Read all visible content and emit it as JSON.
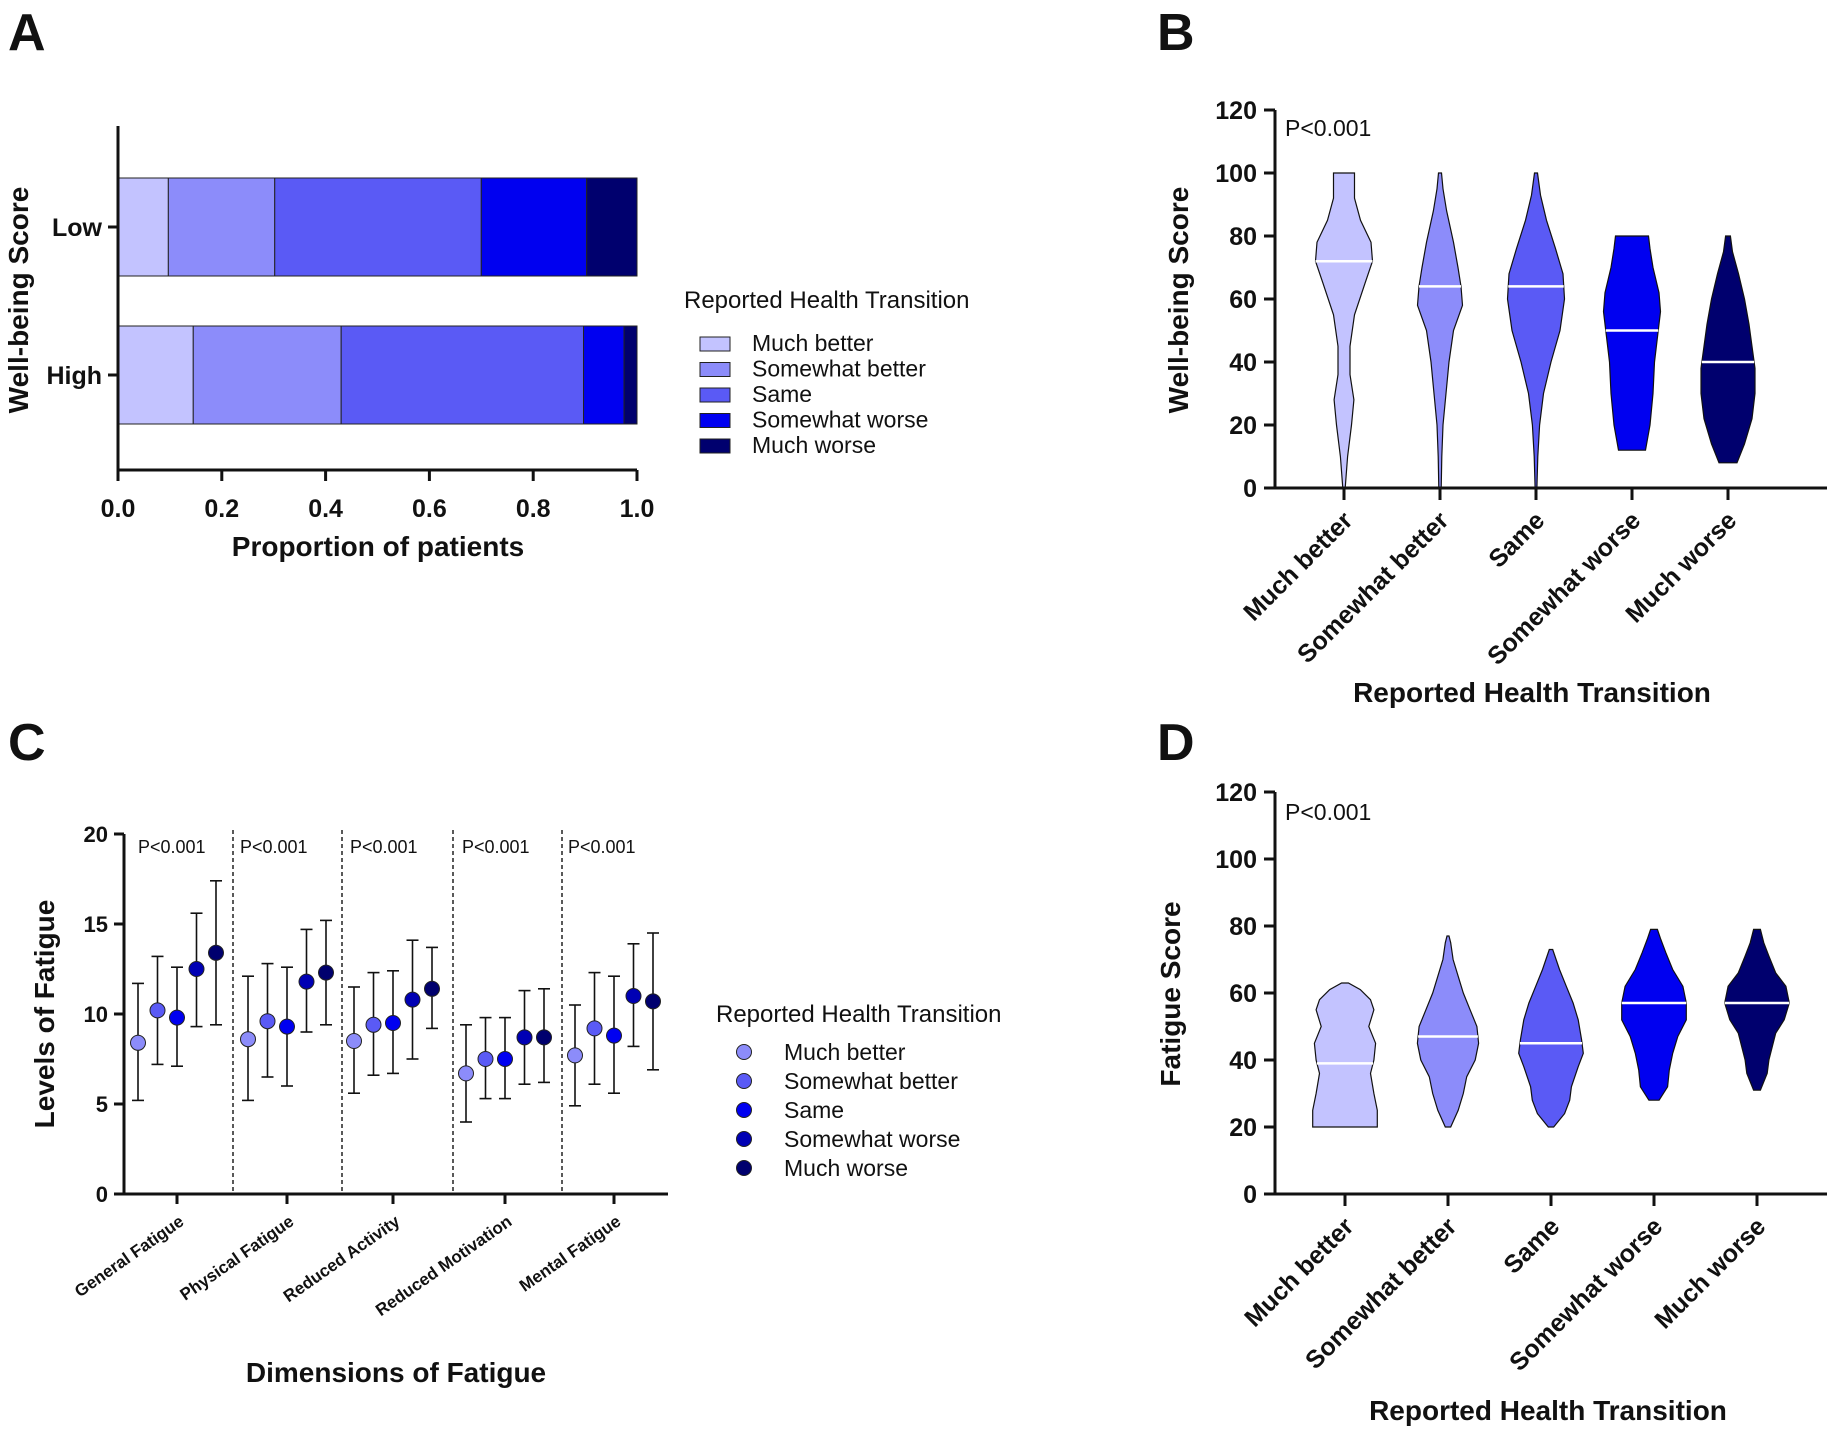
{
  "colors": {
    "much_better": "#c3c3ff",
    "somewhat_better": "#8c8cfa",
    "same": "#5a5af5",
    "somewhat_worse": "#0000f0",
    "much_worse": "#00006e",
    "dot_much_better": "#8c8cfa",
    "dot_somewhat_better": "#5a5af5",
    "dot_same": "#0000f0",
    "dot_somewhat_worse": "#0000b4",
    "dot_much_worse": "#00006e"
  },
  "chart_data": [
    {
      "panel": "A",
      "type": "bar",
      "orientation": "horizontal-stacked",
      "categories": [
        "Low",
        "High"
      ],
      "series": [
        {
          "name": "Much better",
          "values": [
            0.097,
            0.145
          ]
        },
        {
          "name": "Somewhat better",
          "values": [
            0.205,
            0.285
          ]
        },
        {
          "name": "Same",
          "values": [
            0.398,
            0.467
          ]
        },
        {
          "name": "Somewhat worse",
          "values": [
            0.203,
            0.078
          ]
        },
        {
          "name": "Much worse",
          "values": [
            0.097,
            0.025
          ]
        }
      ],
      "xlabel": "Proportion of patients",
      "ylabel": "Well-being Score",
      "xlim": [
        0,
        1.0
      ],
      "xticks": [
        "0.0",
        "0.2",
        "0.4",
        "0.6",
        "0.8",
        "1.0"
      ],
      "legend_title": "Reported Health Transition",
      "legend": [
        "Much better",
        "Somewhat better",
        "Same",
        "Somewhat worse",
        "Much worse"
      ]
    },
    {
      "panel": "B",
      "type": "violin",
      "categories": [
        "Much better",
        "Somewhat better",
        "Same",
        "Somewhat worse",
        "Much worse"
      ],
      "medians": [
        72,
        64,
        64,
        50,
        40
      ],
      "ranges": [
        [
          0,
          100
        ],
        [
          0,
          100
        ],
        [
          0,
          100
        ],
        [
          12,
          80
        ],
        [
          8,
          80
        ]
      ],
      "ylabel": "Well-being Score",
      "xlabel": "Reported Health Transition",
      "ylim": [
        0,
        120
      ],
      "yticks": [
        "0",
        "20",
        "40",
        "60",
        "80",
        "100",
        "120"
      ],
      "annotation": "P<0.001"
    },
    {
      "panel": "C",
      "type": "scatter",
      "subtype": "mean-with-error-bars",
      "groups": [
        "General Fatigue",
        "Physical Fatigue",
        "Reduced Activity",
        "Reduced Motivation",
        "Mental Fatigue"
      ],
      "series_names": [
        "Much better",
        "Somewhat better",
        "Same",
        "Somewhat worse",
        "Much worse"
      ],
      "means": [
        [
          8.4,
          10.2,
          9.8,
          12.5,
          13.4
        ],
        [
          8.6,
          9.6,
          9.3,
          11.8,
          12.3
        ],
        [
          8.5,
          9.4,
          9.5,
          10.8,
          11.4
        ],
        [
          6.7,
          7.5,
          7.5,
          8.7,
          8.7
        ],
        [
          7.7,
          9.2,
          8.8,
          11.0,
          10.7
        ]
      ],
      "lower": [
        [
          5.2,
          7.2,
          7.1,
          9.3,
          9.4
        ],
        [
          5.2,
          6.5,
          6.0,
          9.0,
          9.4
        ],
        [
          5.6,
          6.6,
          6.7,
          7.5,
          9.2
        ],
        [
          4.0,
          5.3,
          5.3,
          6.1,
          6.2
        ],
        [
          4.9,
          6.1,
          5.6,
          8.2,
          6.9
        ]
      ],
      "upper": [
        [
          11.7,
          13.2,
          12.6,
          15.6,
          17.4
        ],
        [
          12.1,
          12.8,
          12.6,
          14.7,
          15.2
        ],
        [
          11.5,
          12.3,
          12.4,
          14.1,
          13.7
        ],
        [
          9.4,
          9.8,
          9.8,
          11.3,
          11.4
        ],
        [
          10.5,
          12.3,
          12.1,
          13.9,
          14.5
        ]
      ],
      "ylabel": "Levels of Fatigue",
      "xlabel": "Dimensions of Fatigue",
      "ylim": [
        0,
        20
      ],
      "yticks": [
        "0",
        "5",
        "10",
        "15",
        "20"
      ],
      "annotations": [
        "P<0.001",
        "P<0.001",
        "P<0.001",
        "P<0.001",
        "P<0.001"
      ],
      "legend_title": "Reported Health Transition",
      "legend": [
        "Much better",
        "Somewhat better",
        "Same",
        "Somewhat worse",
        "Much worse"
      ]
    },
    {
      "panel": "D",
      "type": "violin",
      "categories": [
        "Much better",
        "Somewhat better",
        "Same",
        "Somewhat worse",
        "Much worse"
      ],
      "medians": [
        39,
        47,
        45,
        57,
        57
      ],
      "ranges": [
        [
          20,
          63
        ],
        [
          20,
          77
        ],
        [
          20,
          73
        ],
        [
          28,
          79
        ],
        [
          31,
          79
        ]
      ],
      "ylabel": "Fatigue Score",
      "xlabel": "Reported Health Transition",
      "ylim": [
        0,
        120
      ],
      "yticks": [
        "0",
        "20",
        "40",
        "60",
        "80",
        "100",
        "120"
      ],
      "annotation": "P<0.001"
    }
  ],
  "panels": {
    "a": "A",
    "b": "B",
    "c": "C",
    "d": "D"
  }
}
